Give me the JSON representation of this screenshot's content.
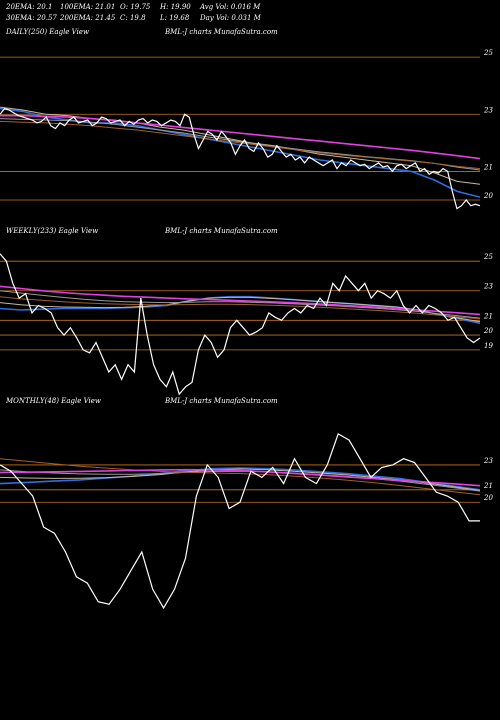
{
  "header": {
    "ema20": "20EMA: 20.1",
    "ema100": "100EMA: 21.01",
    "open": "O: 19.75",
    "high": "H: 19.90",
    "avg_vol": "Avg Vol: 0.016  M",
    "ema30": "30EMA: 20.57",
    "ema200": "200EMA: 21.45",
    "close": "C: 19.8",
    "low": "L: 19.68",
    "day_vol": "Day Vol: 0.031  M"
  },
  "colors": {
    "background": "#000000",
    "grid": "#c8741c",
    "price": "#ffffff",
    "ema_blue": "#2f6de0",
    "ema_magenta": "#e040e0",
    "ema_tan": "#c8b89a",
    "ema_gray": "#9a9a9a",
    "ema_brown": "#a0602a"
  },
  "chart_data": [
    {
      "type": "line",
      "name": "daily",
      "label_left": "DAILY(250) Eagle  View",
      "label_center": "BML-J charts MunafaSutra.com",
      "yticks": [
        25,
        23,
        21,
        20
      ],
      "ylim": [
        19.3,
        25.6
      ],
      "price": [
        23.0,
        23.2,
        23.15,
        23.05,
        22.95,
        22.9,
        22.85,
        22.8,
        22.7,
        22.75,
        22.9,
        22.6,
        22.5,
        22.7,
        22.6,
        22.8,
        22.9,
        22.7,
        22.75,
        22.8,
        22.6,
        22.7,
        22.9,
        22.85,
        22.7,
        22.75,
        22.8,
        22.6,
        22.75,
        22.65,
        22.8,
        22.85,
        22.7,
        22.8,
        22.75,
        22.6,
        22.7,
        22.8,
        22.75,
        22.6,
        23.0,
        22.9,
        22.3,
        21.8,
        22.1,
        22.4,
        22.3,
        22.1,
        22.4,
        22.2,
        22.0,
        21.6,
        21.9,
        22.1,
        21.8,
        21.7,
        22.0,
        21.8,
        21.5,
        21.6,
        21.9,
        21.7,
        21.5,
        21.6,
        21.4,
        21.5,
        21.3,
        21.5,
        21.4,
        21.3,
        21.2,
        21.3,
        21.4,
        21.1,
        21.3,
        21.2,
        21.4,
        21.3,
        21.2,
        21.25,
        21.1,
        21.2,
        21.3,
        21.15,
        21.2,
        21.0,
        21.2,
        21.25,
        21.1,
        21.2,
        21.3,
        21.0,
        21.1,
        20.9,
        21.0,
        20.95,
        21.1,
        21.0,
        20.3,
        19.7,
        19.8,
        20.0,
        19.8,
        19.85,
        19.8
      ],
      "series": [
        {
          "color": "#2f6de0",
          "values": [
            23.2,
            23.1,
            22.9,
            22.8,
            22.7,
            22.7,
            22.6,
            22.45,
            22.3,
            22.15,
            22.0,
            21.85,
            21.7,
            21.55,
            21.4,
            21.3,
            21.2,
            21.1,
            21.0,
            20.7,
            20.3,
            20.1
          ]
        },
        {
          "color": "#c8b89a",
          "values": [
            23.25,
            23.15,
            23.0,
            22.95,
            22.85,
            22.8,
            22.7,
            22.55,
            22.45,
            22.3,
            22.15,
            22.0,
            21.9,
            21.75,
            21.6,
            21.5,
            21.4,
            21.3,
            21.2,
            20.95,
            20.65,
            20.55
          ]
        },
        {
          "color": "#9a9a9a",
          "values": [
            22.85,
            22.82,
            22.8,
            22.78,
            22.72,
            22.65,
            22.55,
            22.45,
            22.35,
            22.22,
            22.1,
            21.98,
            21.88,
            21.78,
            21.68,
            21.6,
            21.52,
            21.45,
            21.38,
            21.28,
            21.15,
            21.05
          ]
        },
        {
          "color": "#a0602a",
          "values": [
            22.75,
            22.72,
            22.7,
            22.65,
            22.6,
            22.52,
            22.45,
            22.35,
            22.25,
            22.15,
            22.05,
            21.95,
            21.85,
            21.75,
            21.65,
            21.57,
            21.5,
            21.43,
            21.36,
            21.28,
            21.18,
            21.1
          ]
        },
        {
          "color": "#e040e0",
          "values": [
            22.95,
            22.95,
            22.93,
            22.9,
            22.85,
            22.78,
            22.7,
            22.62,
            22.54,
            22.46,
            22.38,
            22.3,
            22.22,
            22.14,
            22.06,
            21.98,
            21.9,
            21.82,
            21.74,
            21.65,
            21.55,
            21.45
          ]
        }
      ]
    },
    {
      "type": "line",
      "name": "weekly",
      "label_left": "WEEKLY(233) Eagle  View",
      "label_center": "BML-J charts MunafaSutra.com",
      "yticks": [
        25,
        23,
        21,
        20,
        19
      ],
      "ylim": [
        15.0,
        26.5
      ],
      "price": [
        25.5,
        25.0,
        23.5,
        22.5,
        22.8,
        21.5,
        22.0,
        21.8,
        21.5,
        20.5,
        20.0,
        20.5,
        19.8,
        19.0,
        18.8,
        19.5,
        18.5,
        17.5,
        18.0,
        17.0,
        18.0,
        17.5,
        22.5,
        20.0,
        18.0,
        17.0,
        16.5,
        17.5,
        16.0,
        16.5,
        16.8,
        19.0,
        20.0,
        19.5,
        18.5,
        19.0,
        20.5,
        21.0,
        20.5,
        20.0,
        20.2,
        20.5,
        21.5,
        21.2,
        21.0,
        21.5,
        21.8,
        21.5,
        22.0,
        21.8,
        22.5,
        22.0,
        23.5,
        23.0,
        24.0,
        23.5,
        23.0,
        23.5,
        22.5,
        23.0,
        22.8,
        22.5,
        23.0,
        22.0,
        21.5,
        22.0,
        21.5,
        22.0,
        21.8,
        21.5,
        21.0,
        21.2,
        20.5,
        19.8,
        19.5,
        19.8
      ],
      "series": [
        {
          "color": "#2f6de0",
          "values": [
            21.8,
            21.7,
            21.75,
            21.8,
            21.8,
            21.8,
            21.85,
            21.9,
            22.0,
            22.3,
            22.5,
            22.6,
            22.6,
            22.5,
            22.4,
            22.3,
            22.2,
            22.1,
            22.0,
            21.9,
            21.7,
            21.4,
            21.1,
            20.8
          ]
        },
        {
          "color": "#c8b89a",
          "values": [
            22.2,
            22.05,
            21.95,
            21.9,
            21.88,
            21.86,
            21.88,
            21.95,
            22.05,
            22.3,
            22.5,
            22.55,
            22.55,
            22.48,
            22.4,
            22.3,
            22.2,
            22.1,
            22.0,
            21.9,
            21.7,
            21.4,
            21.15,
            20.9
          ]
        },
        {
          "color": "#9a9a9a",
          "values": [
            23.0,
            22.85,
            22.7,
            22.55,
            22.42,
            22.32,
            22.26,
            22.22,
            22.2,
            22.22,
            22.25,
            22.25,
            22.22,
            22.18,
            22.12,
            22.05,
            21.98,
            21.9,
            21.82,
            21.72,
            21.6,
            21.45,
            21.3,
            21.15
          ]
        },
        {
          "color": "#a0602a",
          "values": [
            22.6,
            22.45,
            22.35,
            22.25,
            22.18,
            22.12,
            22.08,
            22.05,
            22.04,
            22.06,
            22.08,
            22.08,
            22.06,
            22.02,
            21.97,
            21.9,
            21.83,
            21.75,
            21.67,
            21.58,
            21.48,
            21.35,
            21.22,
            21.1
          ]
        },
        {
          "color": "#e040e0",
          "values": [
            23.3,
            23.15,
            23.0,
            22.88,
            22.78,
            22.7,
            22.62,
            22.56,
            22.5,
            22.45,
            22.4,
            22.35,
            22.3,
            22.25,
            22.19,
            22.12,
            22.05,
            21.97,
            21.89,
            21.8,
            21.7,
            21.6,
            21.5,
            21.4
          ]
        }
      ]
    },
    {
      "type": "line",
      "name": "monthly",
      "label_left": "MONTHLY(48) Eagle  View",
      "label_center": "BML-J charts MunafaSutra.com",
      "yticks": [
        23,
        21,
        20
      ],
      "ylim": [
        9.0,
        27.5
      ],
      "price": [
        23.0,
        22.5,
        21.5,
        20.5,
        18.0,
        17.5,
        16.0,
        14.0,
        13.5,
        12.0,
        11.8,
        13.0,
        14.5,
        16.0,
        13.0,
        11.5,
        13.0,
        15.5,
        20.5,
        23.0,
        22.0,
        19.5,
        20.0,
        22.5,
        22.0,
        22.8,
        21.5,
        23.5,
        22.0,
        21.5,
        23.0,
        25.5,
        25.0,
        23.5,
        22.0,
        22.8,
        23.0,
        23.5,
        23.2,
        22.0,
        20.8,
        20.5,
        20.0,
        18.5,
        18.5
      ],
      "series": [
        {
          "color": "#2f6de0",
          "values": [
            21.5,
            21.6,
            21.7,
            21.8,
            21.95,
            22.1,
            22.3,
            22.55,
            22.7,
            22.75,
            22.7,
            22.6,
            22.45,
            22.3,
            22.1,
            21.9,
            21.6,
            21.3,
            21.0
          ]
        },
        {
          "color": "#c8b89a",
          "values": [
            22.0,
            21.95,
            21.92,
            21.93,
            21.98,
            22.08,
            22.22,
            22.45,
            22.62,
            22.68,
            22.62,
            22.5,
            22.35,
            22.2,
            22.0,
            21.8,
            21.55,
            21.25,
            20.95
          ]
        },
        {
          "color": "#9a9a9a",
          "values": [
            22.6,
            22.45,
            22.35,
            22.28,
            22.25,
            22.25,
            22.3,
            22.4,
            22.48,
            22.5,
            22.45,
            22.35,
            22.22,
            22.08,
            21.9,
            21.7,
            21.45,
            21.18,
            20.9
          ]
        },
        {
          "color": "#a0602a",
          "values": [
            23.5,
            23.3,
            23.1,
            22.9,
            22.75,
            22.6,
            22.48,
            22.4,
            22.35,
            22.3,
            22.22,
            22.1,
            21.95,
            21.78,
            21.58,
            21.35,
            21.1,
            20.85,
            20.6
          ]
        },
        {
          "color": "#e040e0",
          "values": [
            22.4,
            22.42,
            22.45,
            22.48,
            22.52,
            22.56,
            22.6,
            22.62,
            22.6,
            22.55,
            22.45,
            22.32,
            22.18,
            22.04,
            21.9,
            21.76,
            21.62,
            21.48,
            21.33
          ]
        }
      ]
    }
  ]
}
